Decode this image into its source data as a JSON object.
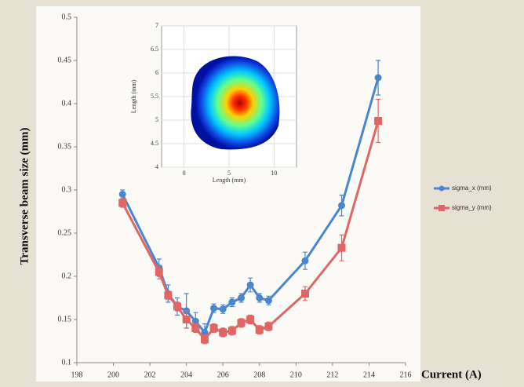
{
  "chart_data": [
    {
      "type": "line",
      "x_label": "Current (A)",
      "y_label": "Transverse beam size (mm)",
      "x": [
        200.5,
        202.5,
        203,
        203.5,
        204,
        204.5,
        205,
        205.5,
        206,
        206.5,
        207,
        207.5,
        208,
        208.5,
        210.5,
        212.5,
        214.5
      ],
      "series": [
        {
          "name": "sigma_x (mm)",
          "color": "#4a86d0",
          "marker": "circle",
          "values": [
            0.295,
            0.21,
            0.18,
            0.165,
            0.16,
            0.148,
            0.135,
            0.163,
            0.162,
            0.17,
            0.175,
            0.19,
            0.175,
            0.172,
            0.218,
            0.282,
            0.43
          ],
          "errors": [
            0.005,
            0.01,
            0.01,
            0.01,
            0.02,
            0.01,
            0.01,
            0.005,
            0.005,
            0.005,
            0.005,
            0.008,
            0.005,
            0.005,
            0.01,
            0.012,
            0.02
          ]
        },
        {
          "name": "sigma_y (mm)",
          "color": "#e06666",
          "marker": "square",
          "values": [
            0.285,
            0.205,
            0.178,
            0.165,
            0.15,
            0.14,
            0.127,
            0.14,
            0.135,
            0.137,
            0.146,
            0.15,
            0.138,
            0.142,
            0.18,
            0.233,
            0.38
          ],
          "errors": [
            0.005,
            0.008,
            0.005,
            0.005,
            0.01,
            0.005,
            0.005,
            0.005,
            0.005,
            0.005,
            0.005,
            0.005,
            0.005,
            0.005,
            0.008,
            0.015,
            0.025
          ]
        }
      ],
      "xlim": [
        198,
        216
      ],
      "xticks": [
        198,
        200,
        202,
        204,
        206,
        208,
        210,
        212,
        214,
        216
      ],
      "ylim": [
        0.1,
        0.5
      ],
      "yticks": [
        0.1,
        0.15,
        0.2,
        0.25,
        0.3,
        0.35,
        0.4,
        0.45,
        0.5
      ],
      "legend": "right"
    },
    {
      "type": "image",
      "x_label": "Length (mm)",
      "y_label": "Length (mm)",
      "xlim": [
        -2.5,
        12.5
      ],
      "xticks": [
        0,
        5,
        10
      ],
      "ylim": [
        4,
        7
      ],
      "yticks": [
        4,
        4.5,
        5,
        5.5,
        6,
        6.5,
        7
      ]
    }
  ]
}
